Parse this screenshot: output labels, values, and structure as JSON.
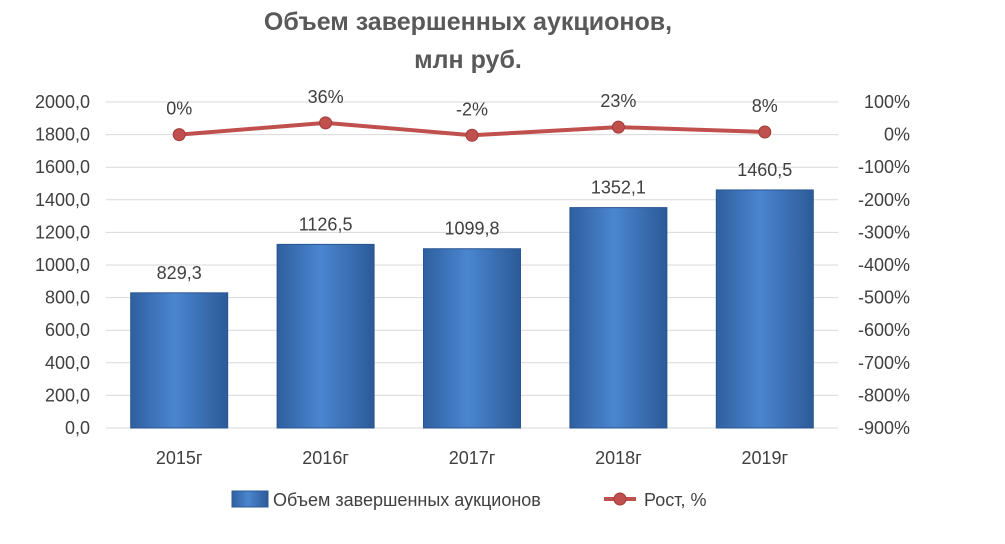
{
  "chart_data": {
    "type": "bar",
    "title_lines": [
      "Объем завершенных аукционов,",
      "млн руб."
    ],
    "categories": [
      "2015г",
      "2016г",
      "2017г",
      "2018г",
      "2019г"
    ],
    "series": [
      {
        "name": "Объем завершенных аукционов",
        "type": "bar",
        "axis": "left",
        "values": [
          829.3,
          1126.5,
          1099.8,
          1352.1,
          1460.5
        ],
        "labels": [
          "829,3",
          "1126,5",
          "1099,8",
          "1352,1",
          "1460,5"
        ],
        "color": "#3d76c4"
      },
      {
        "name": "Рост, %",
        "type": "line",
        "axis": "right",
        "values": [
          0,
          36,
          -2,
          23,
          8
        ],
        "labels": [
          "0%",
          "36%",
          "-2%",
          "23%",
          "8%"
        ],
        "color": "#c0504d"
      }
    ],
    "y_left": {
      "ylim": [
        0,
        2000
      ],
      "ticks": [
        0,
        200,
        400,
        600,
        800,
        1000,
        1200,
        1400,
        1600,
        1800,
        2000
      ],
      "tick_labels": [
        "0,0",
        "200,0",
        "400,0",
        "600,0",
        "800,0",
        "1000,0",
        "1200,0",
        "1400,0",
        "1600,0",
        "1800,0",
        "2000,0"
      ]
    },
    "y_right": {
      "ylim": [
        -900,
        100
      ],
      "ticks": [
        100,
        0,
        -100,
        -200,
        -300,
        -400,
        -500,
        -600,
        -700,
        -800,
        -900
      ],
      "tick_labels": [
        "100%",
        "0%",
        "-100%",
        "-200%",
        "-300%",
        "-400%",
        "-500%",
        "-600%",
        "-700%",
        "-800%",
        "-900%"
      ]
    },
    "grid": true,
    "legend_position": "bottom"
  }
}
